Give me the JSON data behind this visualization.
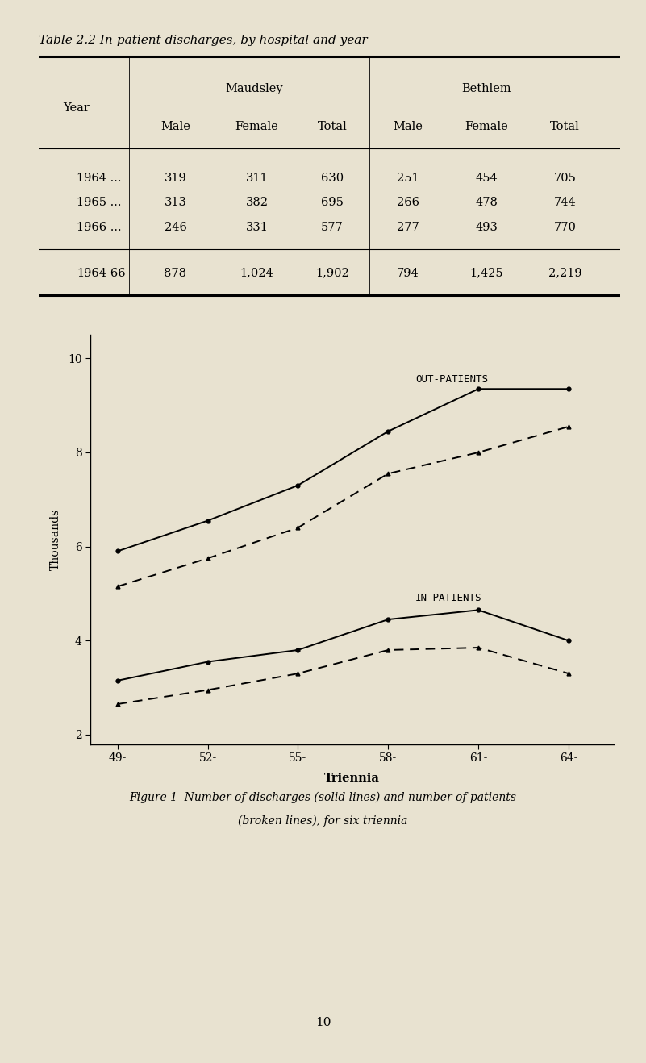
{
  "bg_color": "#e8e2d0",
  "table_title": "Table 2.2 In-patient discharges, by hospital and year",
  "table_rows": [
    [
      "1964 ...",
      "319",
      "311",
      "630",
      "251",
      "454",
      "705"
    ],
    [
      "1965 ...",
      "313",
      "382",
      "695",
      "266",
      "478",
      "744"
    ],
    [
      "1966 ...",
      "246",
      "331",
      "577",
      "277",
      "493",
      "770"
    ],
    [
      "1964-66",
      "878",
      "1,024",
      "1,902",
      "794",
      "1,425",
      "2,219"
    ]
  ],
  "x_labels": [
    "49-",
    "52-",
    "55-",
    "58-",
    "61-",
    "64-"
  ],
  "x_values": [
    0,
    1,
    2,
    3,
    4,
    5
  ],
  "out_solid": [
    5.9,
    6.55,
    7.3,
    8.45,
    9.35,
    9.35
  ],
  "out_dashed": [
    5.15,
    5.75,
    6.4,
    7.55,
    8.0,
    8.55
  ],
  "in_solid": [
    3.15,
    3.55,
    3.8,
    4.45,
    4.65,
    4.0
  ],
  "in_dashed": [
    2.65,
    2.95,
    3.3,
    3.8,
    3.85,
    3.3
  ],
  "ylabel": "Thousands",
  "xlabel": "Triennia",
  "yticks": [
    2,
    4,
    6,
    8,
    10
  ],
  "ylim": [
    1.8,
    10.5
  ],
  "out_label": "OUT-PATIENTS",
  "in_label": "IN-PATIENTS",
  "figure_caption_l1": "Figure 1  Number of discharges (solid lines) and number of patients",
  "figure_caption_l2": "(broken lines), for six triennia",
  "page_number": "10"
}
